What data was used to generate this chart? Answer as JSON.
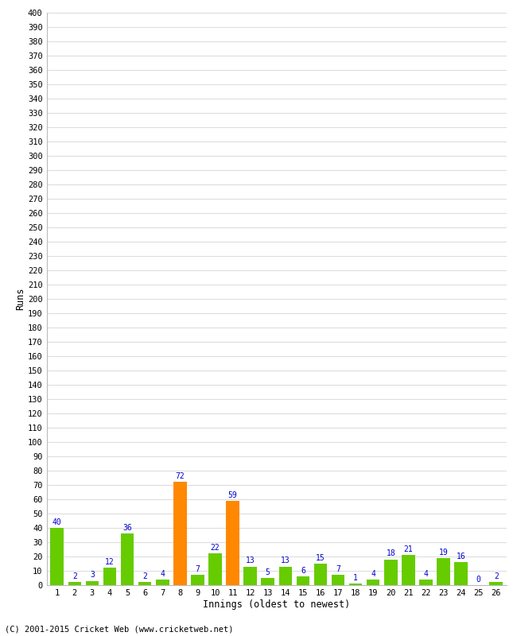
{
  "title": "",
  "xlabel": "Innings (oldest to newest)",
  "ylabel": "Runs",
  "categories": [
    1,
    2,
    3,
    4,
    5,
    6,
    7,
    8,
    9,
    10,
    11,
    12,
    13,
    14,
    15,
    16,
    17,
    18,
    19,
    20,
    21,
    22,
    23,
    24,
    25,
    26
  ],
  "values": [
    40,
    2,
    3,
    12,
    36,
    2,
    4,
    72,
    7,
    22,
    59,
    13,
    5,
    13,
    6,
    15,
    7,
    1,
    4,
    18,
    21,
    4,
    19,
    16,
    0,
    2
  ],
  "colors": [
    "#66cc00",
    "#66cc00",
    "#66cc00",
    "#66cc00",
    "#66cc00",
    "#66cc00",
    "#66cc00",
    "#ff8800",
    "#66cc00",
    "#66cc00",
    "#ff8800",
    "#66cc00",
    "#66cc00",
    "#66cc00",
    "#66cc00",
    "#66cc00",
    "#66cc00",
    "#66cc00",
    "#66cc00",
    "#66cc00",
    "#66cc00",
    "#66cc00",
    "#66cc00",
    "#66cc00",
    "#66cc00",
    "#66cc00"
  ],
  "ylim": [
    0,
    400
  ],
  "yticks": [
    0,
    10,
    20,
    30,
    40,
    50,
    60,
    70,
    80,
    90,
    100,
    110,
    120,
    130,
    140,
    150,
    160,
    170,
    180,
    190,
    200,
    210,
    220,
    230,
    240,
    250,
    260,
    270,
    280,
    290,
    300,
    310,
    320,
    330,
    340,
    350,
    360,
    370,
    380,
    390,
    400
  ],
  "label_color": "#0000cc",
  "background_color": "#ffffff",
  "plot_bg_color": "#ffffff",
  "grid_color": "#dddddd",
  "footer": "(C) 2001-2015 Cricket Web (www.cricketweb.net)",
  "bar_width": 0.75,
  "tick_fontsize": 7.5,
  "label_fontsize": 8.5,
  "bar_label_fontsize": 7
}
